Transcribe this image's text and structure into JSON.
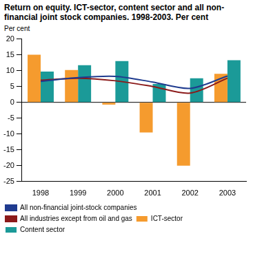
{
  "chart_data": {
    "type": "bar",
    "title": "Return on equity. ICT-sector, content sector and all non-financial joint stock companies. 1998-2003. Per cent",
    "y_label": "Per cent",
    "categories": [
      "1998",
      "1999",
      "2000",
      "2001",
      "2002",
      "2003"
    ],
    "series": [
      {
        "name": "ICT-sector",
        "type": "bar",
        "color": "#f59b2e",
        "values": [
          15,
          10.2,
          -0.7,
          -9.5,
          -20,
          9
        ]
      },
      {
        "name": "Content sector",
        "type": "bar",
        "color": "#1b9a98",
        "values": [
          9.7,
          11.7,
          13,
          5.8,
          7.6,
          13.3
        ]
      },
      {
        "name": "All non-financial joint-stock companies",
        "type": "line",
        "color": "#1f3b8f",
        "values": [
          6.6,
          7.8,
          8.2,
          6.4,
          4.4,
          8.3
        ]
      },
      {
        "name": "All industries except from oil and gas",
        "type": "line",
        "color": "#8b1a1a",
        "values": [
          7.0,
          7.6,
          6.8,
          5.0,
          2.9,
          7.6
        ]
      }
    ],
    "ylim": [
      -25,
      20
    ],
    "yticks": [
      -25,
      -20,
      -15,
      -10,
      -5,
      0,
      5,
      10,
      15,
      20
    ],
    "grid": false,
    "legend": "bottom"
  }
}
